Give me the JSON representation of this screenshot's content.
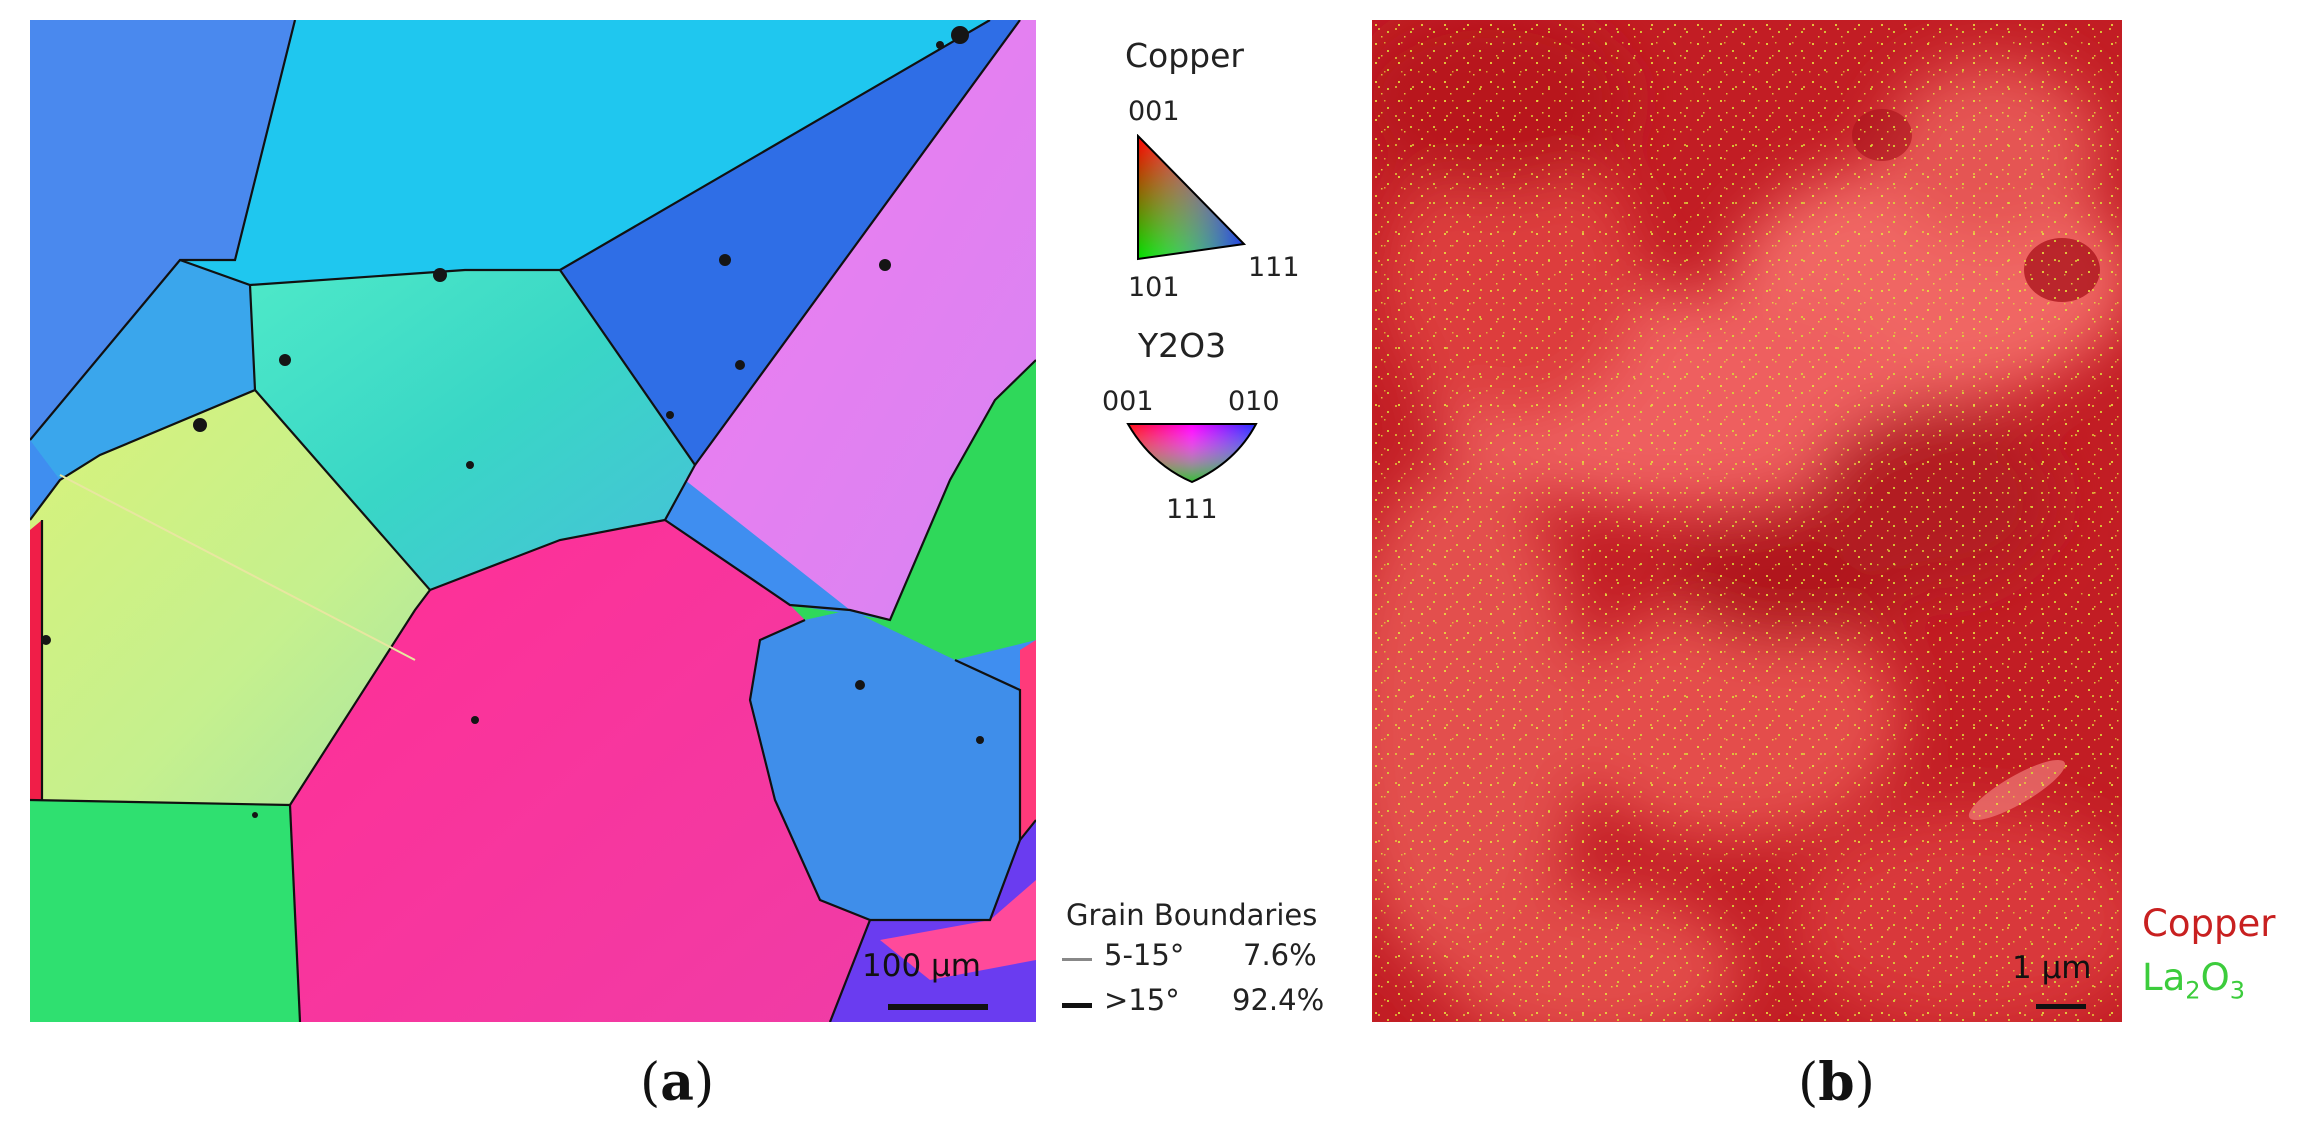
{
  "panel_a": {
    "scale_bar_label": "100 µm",
    "legend": {
      "copper_title": "Copper",
      "copper_vertices": [
        "001",
        "101",
        "111"
      ],
      "y2o3_title": "Y2O3",
      "y2o3_vertices": [
        "001",
        "010",
        "111"
      ]
    },
    "grain_boundaries": {
      "title": "Grain Boundaries",
      "rows": [
        {
          "range": "5-15°",
          "percent": "7.6%",
          "line_color": "#888888"
        },
        {
          "range": ">15°",
          "percent": "92.4%",
          "line_color": "#111111"
        }
      ]
    },
    "caption_open": "(",
    "caption_letter": "a",
    "caption_close": ")"
  },
  "panel_b": {
    "scale_bar_label": "1 µm",
    "element_labels": [
      {
        "name": "Copper",
        "color": "#c82020"
      },
      {
        "name_base": "La",
        "sub1": "2",
        "mid": "O",
        "sub2": "3",
        "color": "#3ccc3c"
      }
    ],
    "caption_open": "(",
    "caption_letter": "b",
    "caption_close": ")"
  }
}
